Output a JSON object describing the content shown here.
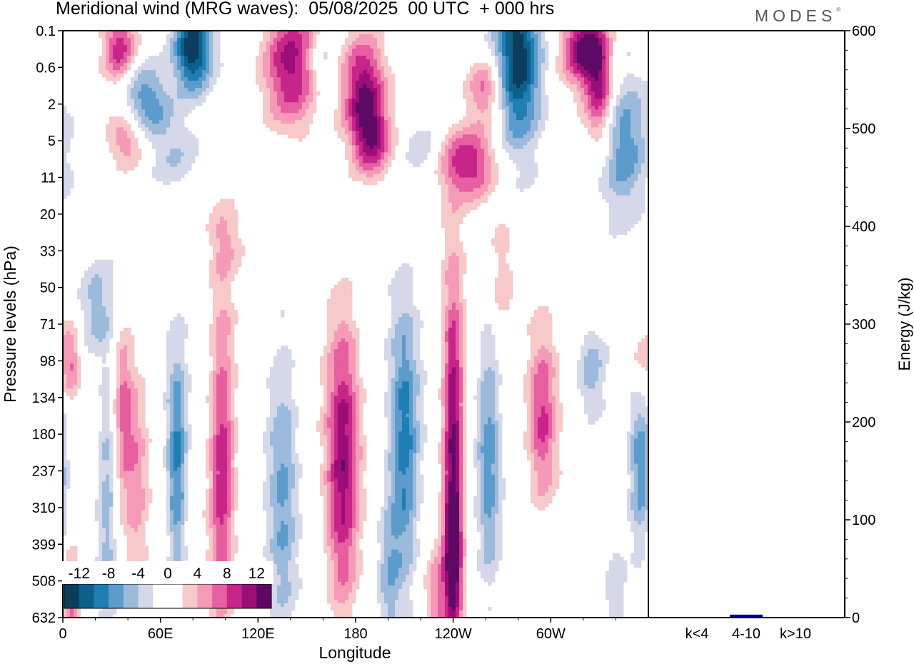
{
  "title": "Meridional wind (MRG waves):  05/08/2025  00 UTC  + 000 hrs",
  "logo": "MODES",
  "chart_data": [
    {
      "type": "heatmap",
      "title": "Meridional wind (MRG waves):  05/08/2025  00 UTC  + 000 hrs",
      "xlabel": "Longitude",
      "ylabel": "Pressure levels (hPa)",
      "x_ticks": [
        "0",
        "60E",
        "120E",
        "180",
        "120W",
        "60W"
      ],
      "x_tick_lon": [
        0,
        60,
        120,
        180,
        240,
        300
      ],
      "xlim": [
        0,
        360
      ],
      "y_ticks": [
        "0.1",
        "0.6",
        "2",
        "5",
        "11",
        "20",
        "33",
        "50",
        "71",
        "98",
        "134",
        "180",
        "237",
        "310",
        "399",
        "508",
        "632"
      ],
      "colorbar": {
        "labels": [
          "-12",
          "-8",
          "-4",
          "0",
          "4",
          "8",
          "12"
        ],
        "colors": [
          "#0b3d5c",
          "#0e5f8c",
          "#1f7fb5",
          "#5b9ccc",
          "#9cbadb",
          "#d4d8e8",
          "#ffffff",
          "#ffffff",
          "#f7c9c9",
          "#f59bb8",
          "#e65fa0",
          "#c7258a",
          "#9b0d79",
          "#5e0a64"
        ]
      },
      "features": [
        {
          "lon": 80,
          "lev": 0.5,
          "val": -14,
          "w": 16,
          "h": 0.8
        },
        {
          "lon": 280,
          "lev": 0.7,
          "val": -14,
          "w": 20,
          "h": 1.6
        },
        {
          "lon": 50,
          "lev": 2.0,
          "val": -9,
          "w": 22,
          "h": 0.8
        },
        {
          "lon": 35,
          "lev": 0.5,
          "val": 9,
          "w": 14,
          "h": 0.7
        },
        {
          "lon": 140,
          "lev": 1.0,
          "val": 11,
          "w": 24,
          "h": 1.2
        },
        {
          "lon": 185,
          "lev": 1.6,
          "val": 11,
          "w": 18,
          "h": 1.0
        },
        {
          "lon": 320,
          "lev": 0.5,
          "val": 12,
          "w": 18,
          "h": 0.7
        },
        {
          "lon": 330,
          "lev": 1.6,
          "val": 10,
          "w": 12,
          "h": 1.1
        },
        {
          "lon": 260,
          "lev": 1.6,
          "val": 8,
          "w": 16,
          "h": 0.6
        },
        {
          "lon": 160,
          "lev": 0.9,
          "val": -5,
          "w": 12,
          "h": 0.6
        },
        {
          "lon": 40,
          "lev": 2.9,
          "val": 8,
          "w": 18,
          "h": 0.6
        },
        {
          "lon": 190,
          "lev": 3.0,
          "val": 9,
          "w": 16,
          "h": 0.7
        },
        {
          "lon": 250,
          "lev": 3.6,
          "val": 10,
          "w": 24,
          "h": 0.7
        },
        {
          "lon": 70,
          "lev": 3.4,
          "val": -4,
          "w": 24,
          "h": 0.8
        },
        {
          "lon": 345,
          "lev": 3.2,
          "val": -8,
          "w": 22,
          "h": 1.4
        },
        {
          "lon": 220,
          "lev": 3.2,
          "val": -4,
          "w": 16,
          "h": 0.6
        },
        {
          "lon": 100,
          "lev": 5.7,
          "val": 3,
          "w": 14,
          "h": 0.6
        },
        {
          "lon": 270,
          "lev": 7.2,
          "val": 3,
          "w": 12,
          "h": 0.6
        },
        {
          "lon": 270,
          "lev": 5.8,
          "val": 3,
          "w": 10,
          "h": 0.5
        },
        {
          "lon": 20,
          "lev": 7.6,
          "val": -5,
          "w": 16,
          "h": 1.0
        },
        {
          "lon": 5,
          "lev": 9.0,
          "val": 6,
          "w": 8,
          "h": 0.7
        },
        {
          "lon": 37,
          "lev": 10.3,
          "val": 6,
          "w": 8,
          "h": 1.6
        },
        {
          "lon": 27,
          "lev": 12.5,
          "val": -5,
          "w": 8,
          "h": 2.5
        },
        {
          "lon": 45,
          "lev": 12.4,
          "val": 5,
          "w": 10,
          "h": 2.2
        },
        {
          "lon": 70,
          "lev": 11.8,
          "val": -9,
          "w": 9,
          "h": 2.2
        },
        {
          "lon": 98,
          "lev": 12.3,
          "val": 10,
          "w": 11,
          "h": 3.5
        },
        {
          "lon": 135,
          "lev": 12.4,
          "val": -6,
          "w": 13,
          "h": 3.2
        },
        {
          "lon": 172,
          "lev": 11.8,
          "val": 11,
          "w": 14,
          "h": 3.0
        },
        {
          "lon": 210,
          "lev": 11.4,
          "val": -9,
          "w": 13,
          "h": 2.8
        },
        {
          "lon": 240,
          "lev": 11.3,
          "val": 13,
          "w": 9,
          "h": 3.2
        },
        {
          "lon": 240,
          "lev": 14.6,
          "val": 9,
          "w": 7,
          "h": 1.2
        },
        {
          "lon": 262,
          "lev": 11.5,
          "val": -7,
          "w": 10,
          "h": 2.5
        },
        {
          "lon": 295,
          "lev": 10.5,
          "val": 8,
          "w": 12,
          "h": 1.7
        },
        {
          "lon": 325,
          "lev": 9.4,
          "val": -5,
          "w": 12,
          "h": 0.9
        },
        {
          "lon": 355,
          "lev": 12.0,
          "val": -7,
          "w": 10,
          "h": 1.8
        },
        {
          "lon": 355,
          "lev": 9.0,
          "val": 4,
          "w": 10,
          "h": 0.8
        },
        {
          "lon": 200,
          "lev": 14.7,
          "val": -5,
          "w": 10,
          "h": 1.5
        },
        {
          "lon": 230,
          "lev": 15.6,
          "val": 5,
          "w": 10,
          "h": 1.2
        },
        {
          "lon": 5,
          "lev": 15.5,
          "val": 6,
          "w": 8,
          "h": 1.2
        },
        {
          "lon": 340,
          "lev": 15.3,
          "val": -4,
          "w": 10,
          "h": 1.4
        },
        {
          "lon": 100,
          "lev": 15.3,
          "val": -3,
          "w": 12,
          "h": 1.4
        }
      ]
    },
    {
      "type": "bar",
      "categories": [
        "k<4",
        "4-10",
        "k>10"
      ],
      "values": [
        0,
        3,
        0
      ],
      "ylabel": "Energy (J/kg)",
      "ylim": [
        0,
        600
      ],
      "y_ticks": [
        "0",
        "100",
        "200",
        "300",
        "400",
        "500",
        "600"
      ],
      "bar_color": "#00008b"
    }
  ]
}
